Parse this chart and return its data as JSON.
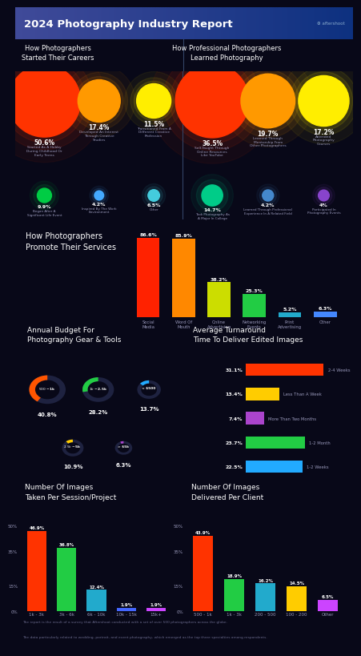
{
  "title": "2024 Photography Industry Report",
  "bg_color": "#080818",
  "text_color": "#ffffff",
  "section1_title": "How Photographers\nStarted Their Careers",
  "career_data": [
    {
      "pct": "50.6%",
      "label": "Started As A Hobby\nDuring Childhood Or\nEarly Teens",
      "size": 0.506,
      "color": "#ff3300",
      "row": 0
    },
    {
      "pct": "17.4%",
      "label": "Developed An Interest\nThrough Creative\nStudies",
      "size": 0.174,
      "color": "#ff9900",
      "row": 0
    },
    {
      "pct": "11.5%",
      "label": "Transitioned From A\nDifferent Creative\nProfession",
      "size": 0.115,
      "color": "#ffee00",
      "row": 0
    },
    {
      "pct": "9.9%",
      "label": "Began After A\nSignificant Life Event",
      "size": 0.099,
      "color": "#00cc44",
      "row": 1
    },
    {
      "pct": "4.2%",
      "label": "Inspired By The Work\nEnvironment",
      "size": 0.042,
      "color": "#44aaff",
      "row": 1
    },
    {
      "pct": "6.5%",
      "label": "Other",
      "size": 0.065,
      "color": "#44ccdd",
      "row": 1
    }
  ],
  "section2_title": "How Professional Photographers\nLearned Photography",
  "learn_data": [
    {
      "pct": "36.5%",
      "label": "Self-Taught Through\nOnline Resources\nLike YouTube",
      "size": 0.365,
      "color": "#ff3300",
      "row": 0
    },
    {
      "pct": "19.7%",
      "label": "Learned Through\nMentorship From\nOther Photographers",
      "size": 0.197,
      "color": "#ff9900",
      "row": 0
    },
    {
      "pct": "17.2%",
      "label": "Attended\nPhotography\nCourses",
      "size": 0.172,
      "color": "#ffee00",
      "row": 0
    },
    {
      "pct": "14.7%",
      "label": "Took Photography As\nA Major In College",
      "size": 0.147,
      "color": "#00cc88",
      "row": 1
    },
    {
      "pct": "4.2%",
      "label": "Learned Through Professional\nExperience In A Related Field",
      "size": 0.042,
      "color": "#4488cc",
      "row": 1
    },
    {
      "pct": "4%",
      "label": "Participated In\nPhotography Events",
      "size": 0.04,
      "color": "#8844cc",
      "row": 1
    }
  ],
  "section3_title": "How Photographers\nPromote Their Services",
  "promo_cats": [
    "Social\nMedia",
    "Word Of\nMouth",
    "Online\nAdvertising",
    "Networking\nEvents",
    "Print\nAdvertising",
    "Other"
  ],
  "promo_vals": [
    86.6,
    85.9,
    38.2,
    25.3,
    5.2,
    6.3
  ],
  "promo_colors": [
    "#ff2200",
    "#ff8800",
    "#ccdd00",
    "#22cc44",
    "#22aacc",
    "#4488ff"
  ],
  "section4_title": "Annual Budget For\nPhotography Gear & Tools",
  "budget_data": [
    {
      "label": "$500 - $1k",
      "pct": "40.8%",
      "color": "#ff5500"
    },
    {
      "label": "$1k - $2.5k",
      "pct": "28.2%",
      "color": "#22cc44"
    },
    {
      "label": "< $500",
      "pct": "13.7%",
      "color": "#22aaff"
    },
    {
      "label": "$2.5k - $5k",
      "pct": "10.9%",
      "color": "#ffcc00"
    },
    {
      "label": "> $5k",
      "pct": "6.3%",
      "color": "#aa44cc"
    }
  ],
  "budget_sizes": [
    0.408,
    0.282,
    0.137,
    0.109,
    0.063
  ],
  "budget_ring_color": "#1e2240",
  "section5_title": "Average Turnaround\nTime To Deliver Edited Images",
  "turnaround_data": [
    {
      "cat": "2-4 Weeks",
      "val": 31.1,
      "color": "#ff3300"
    },
    {
      "cat": "Less Than A Week",
      "val": 13.4,
      "color": "#ffcc00"
    },
    {
      "cat": "More Than Two Months",
      "val": 7.4,
      "color": "#aa44cc"
    },
    {
      "cat": "1-2 Month",
      "val": 23.7,
      "color": "#22cc44"
    },
    {
      "cat": "1-2 Weeks",
      "val": 22.5,
      "color": "#22aaff"
    }
  ],
  "section6_title": "Number Of Images\nTaken Per Session/Project",
  "taken_cats": [
    "1k - 3k",
    "3k - 6k",
    "6k - 10k",
    "10k - 15k",
    "15k+"
  ],
  "taken_vals": [
    46.9,
    36.8,
    12.4,
    1.9,
    1.9
  ],
  "taken_colors": [
    "#ff3300",
    "#22cc44",
    "#22aacc",
    "#4466ff",
    "#cc44ff"
  ],
  "taken_yticks": [
    "0%",
    "15%",
    "35%",
    "50%"
  ],
  "taken_ytick_vals": [
    0,
    15,
    35,
    50
  ],
  "section7_title": "Number Of Images\nDelivered Per Client",
  "delivered_cats": [
    "500 - 1k",
    "1k - 3k",
    "200 - 500",
    "100 - 200",
    "Other"
  ],
  "delivered_vals": [
    43.9,
    18.9,
    16.2,
    14.5,
    6.5
  ],
  "delivered_colors": [
    "#ff3300",
    "#22cc44",
    "#22aacc",
    "#ffcc00",
    "#cc44ff"
  ],
  "delivered_yticks": [
    "0%",
    "15%",
    "35%",
    "50%"
  ],
  "delivered_ytick_vals": [
    0,
    15,
    35,
    50
  ],
  "footer1": "The report is the result of a survey that Aftershoot conducted with a set of over 500 photographers across the globe.",
  "footer2": "The data particularly related to wedding, portrait, and event photography, which emerged as the top three specialties among respondents."
}
